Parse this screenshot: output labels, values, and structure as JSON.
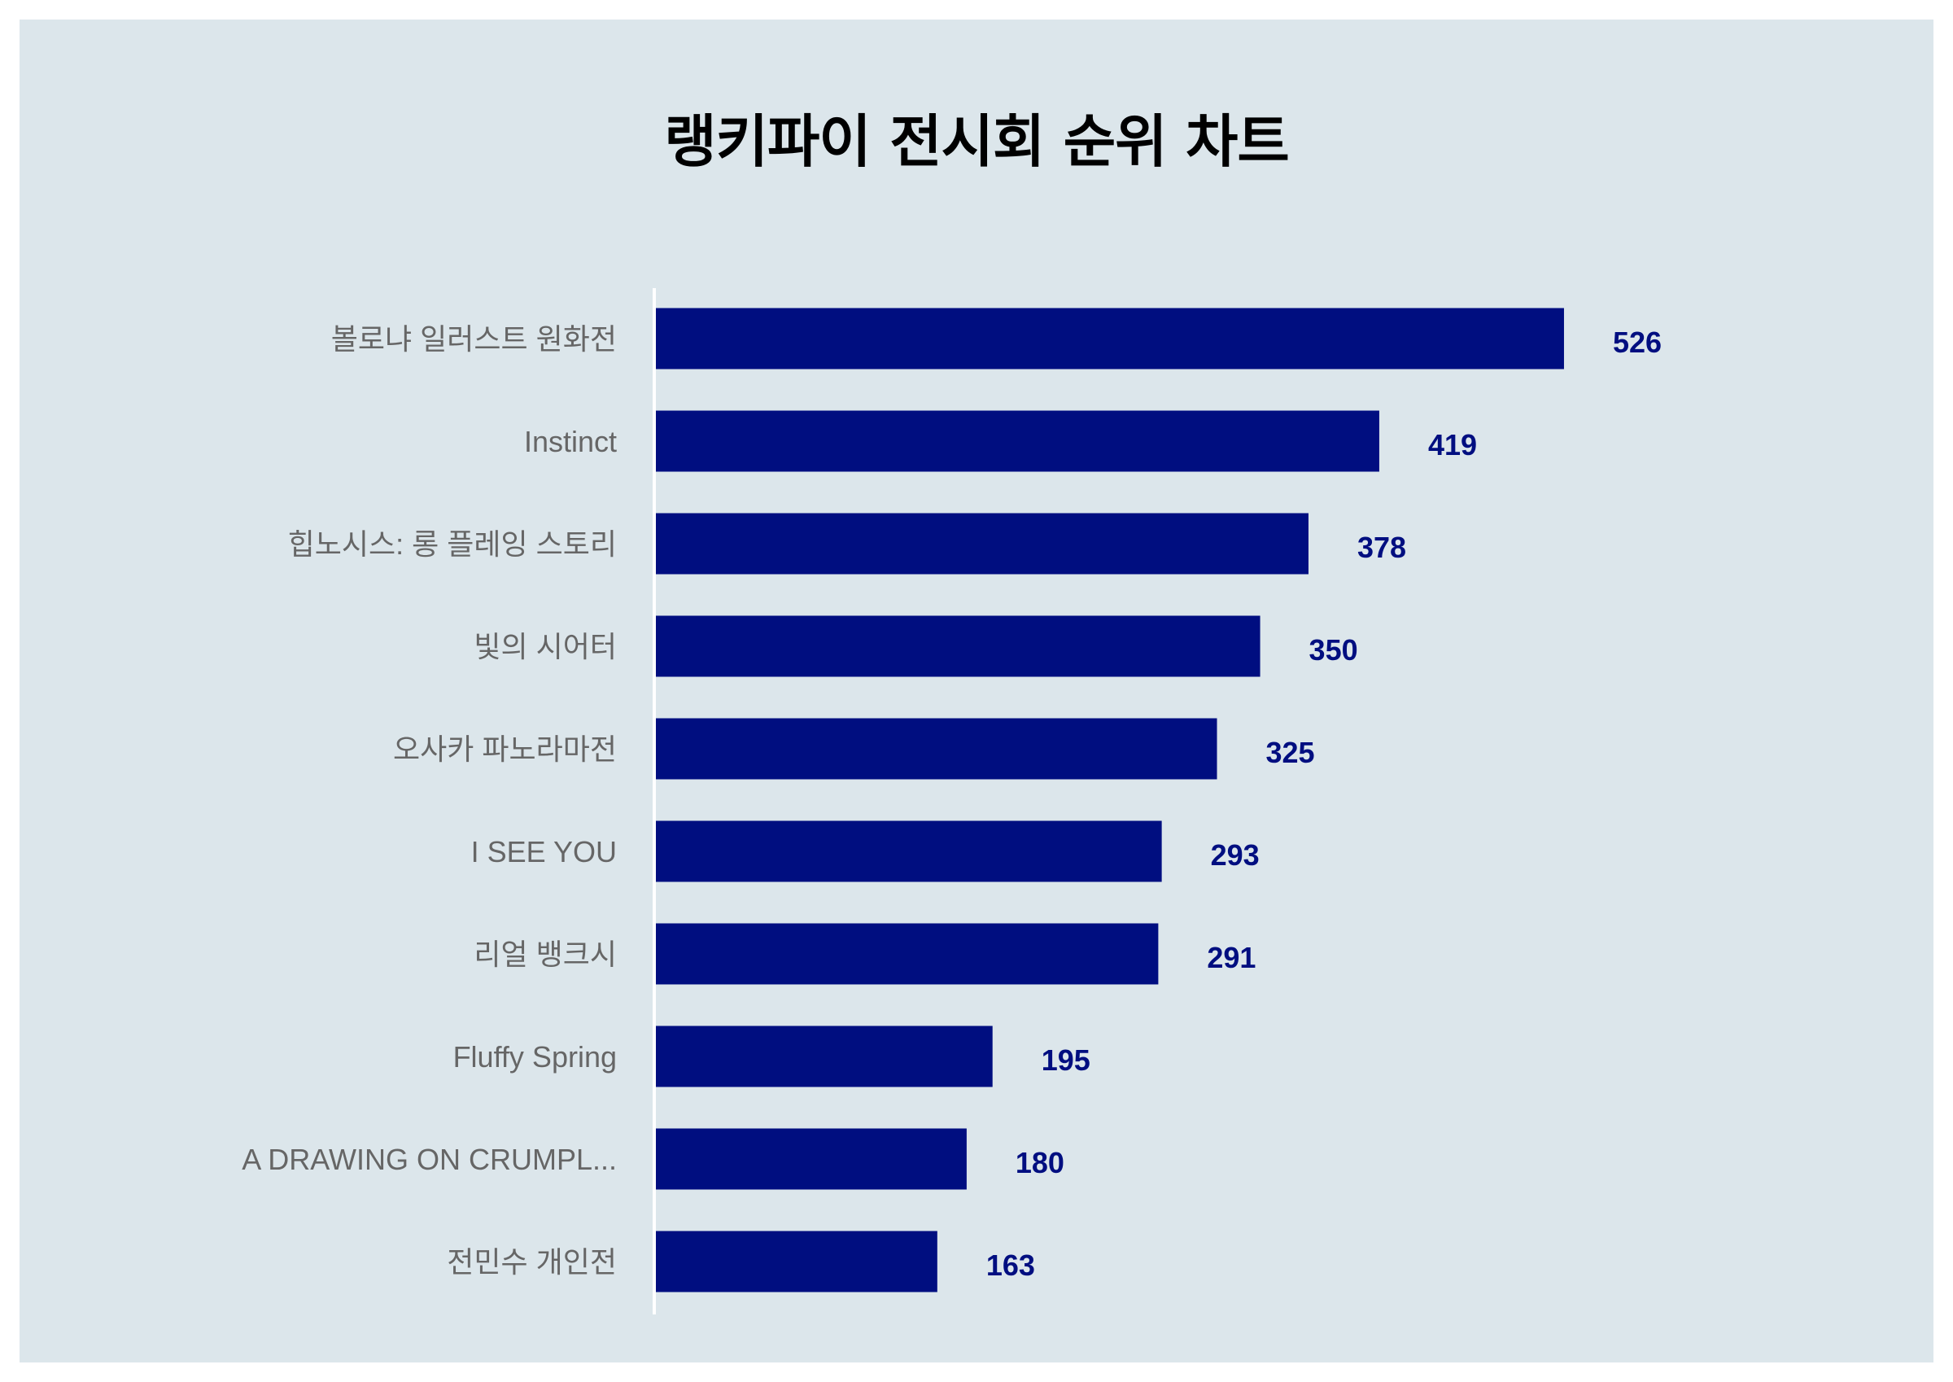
{
  "chart_data": {
    "type": "bar",
    "orientation": "horizontal",
    "title": "랭키파이 전시회 순위 차트",
    "categories": [
      "볼로냐 일러스트 원화전",
      "Instinct",
      "힙노시스: 롱 플레잉 스토리",
      "빛의 시어터",
      "오사카 파노라마전",
      "I SEE YOU",
      "리얼 뱅크시",
      "Fluffy Spring",
      "A DRAWING ON CRUMPL...",
      "전민수 개인전"
    ],
    "values": [
      526,
      419,
      378,
      350,
      325,
      293,
      291,
      195,
      180,
      163
    ],
    "xlim": [
      0,
      600
    ],
    "bar_color": "#000e80",
    "value_label_color": "#000e80",
    "background": "#dce6eb",
    "grid": false,
    "legend": "none"
  }
}
